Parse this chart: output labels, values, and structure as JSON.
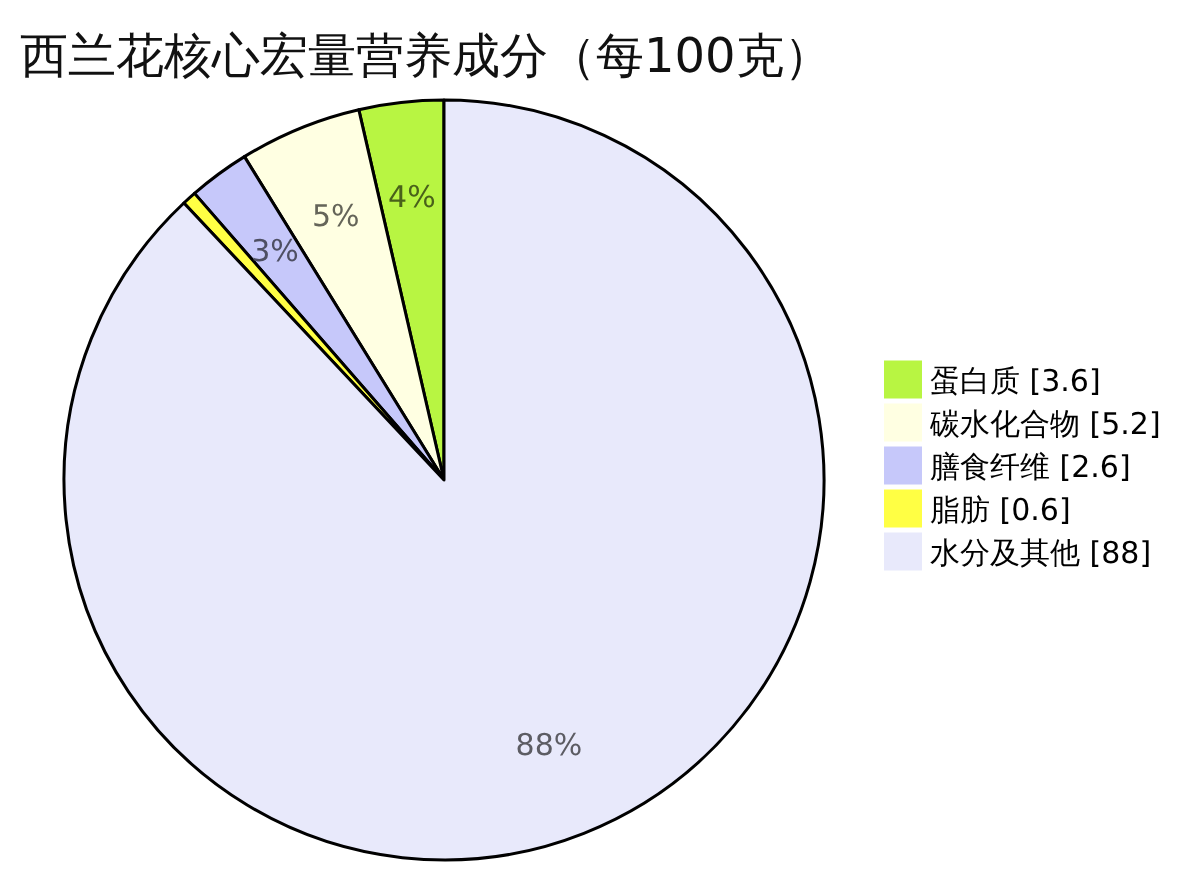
{
  "chart_data": {
    "type": "pie",
    "title": "西兰花核心宏量营养成分（每100克）",
    "categories": [
      "蛋白质 [3.6]",
      "碳水化合物 [5.2]",
      "膳食纤维 [2.6]",
      "脂肪 [0.6]",
      "水分及其他 [88]"
    ],
    "values": [
      3.6,
      5.2,
      2.6,
      0.6,
      88
    ],
    "colors": [
      "#b8f542",
      "#ffffe2",
      "#c6c8fa",
      "#ffff44",
      "#e8e9fb"
    ],
    "value_labels": [
      "4%",
      "5%",
      "3%",
      null,
      "88%"
    ],
    "legend": "right"
  }
}
